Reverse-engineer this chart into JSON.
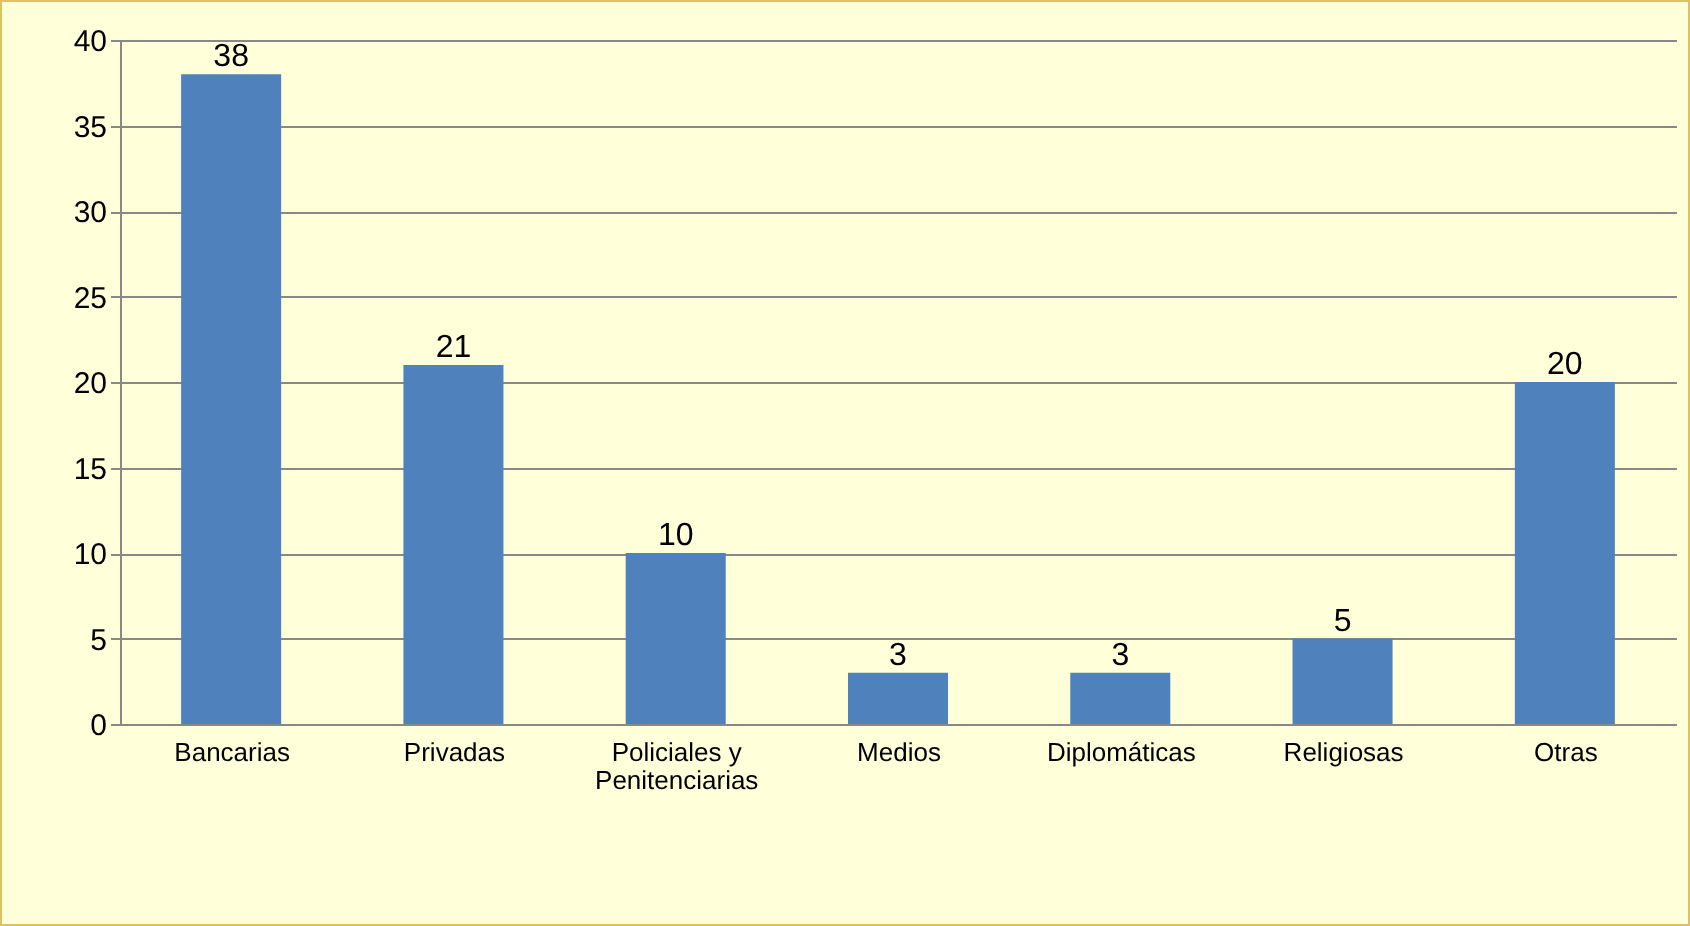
{
  "chart_data": {
    "type": "bar",
    "categories": [
      "Bancarias",
      "Privadas",
      "Policiales y Penitenciarias",
      "Medios",
      "Diplomáticas",
      "Religiosas",
      "Otras"
    ],
    "values": [
      38,
      21,
      10,
      3,
      3,
      5,
      20
    ],
    "color": "#4f81bd",
    "ylim": [
      0,
      40
    ],
    "yticks": [
      0,
      5,
      10,
      15,
      20,
      25,
      30,
      35,
      40
    ],
    "grid": "y",
    "data_labels": true
  }
}
